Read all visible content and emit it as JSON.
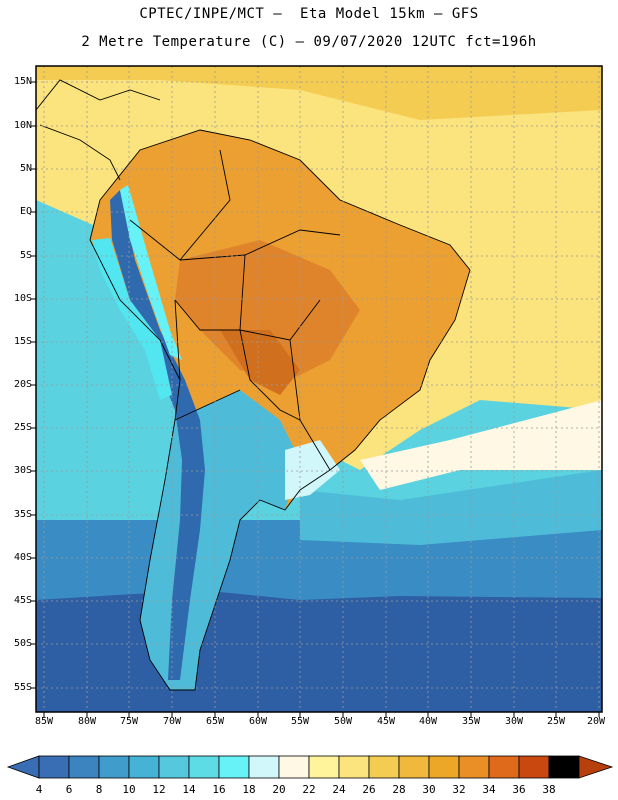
{
  "header": {
    "title_line1": "CPTEC/INPE/MCT –  Eta Model 15km – GFS",
    "title_line2": "2 Metre Temperature (C) – 09/07/2020 12UTC fct=196h"
  },
  "map": {
    "lat_labels": [
      "15N",
      "10N",
      "5N",
      "EQ",
      "5S",
      "10S",
      "15S",
      "20S",
      "25S",
      "30S",
      "35S",
      "40S",
      "45S",
      "50S",
      "55S"
    ],
    "lon_labels": [
      "85W",
      "80W",
      "75W",
      "70W",
      "65W",
      "60W",
      "55W",
      "50W",
      "45W",
      "40W",
      "35W",
      "30W",
      "25W",
      "20W"
    ],
    "colors": {
      "deep_ocean": "#2e5fa4",
      "cold_ocean": "#3a8cc4",
      "cool_ocean": "#4ebcd8",
      "pacific_near": "#5ad2e0",
      "coast_cyan": "#52e6f0",
      "warm_ocean": "#fbe37e",
      "hot_land": "#eca032",
      "very_hot": "#e0842c",
      "andes_cold": "#2f6aae"
    }
  },
  "colorbar": {
    "labels": [
      "4",
      "6",
      "8",
      "10",
      "12",
      "14",
      "16",
      "18",
      "20",
      "22",
      "24",
      "26",
      "28",
      "30",
      "32",
      "34",
      "36",
      "38"
    ],
    "colors": [
      "#3a6eb4",
      "#3c84c0",
      "#3f9ccb",
      "#45b2d6",
      "#55c8de",
      "#5ddce6",
      "#66f2f6",
      "#d2f7fb",
      "#fff8e4",
      "#fff49c",
      "#fbe37e",
      "#f4cc52",
      "#f0b83c",
      "#eca628",
      "#ea8e26",
      "#e06a1c",
      "#c84810"
    ],
    "low_arrow_color": "#3a6eb4",
    "high_arrow_color": "#b8400c"
  }
}
